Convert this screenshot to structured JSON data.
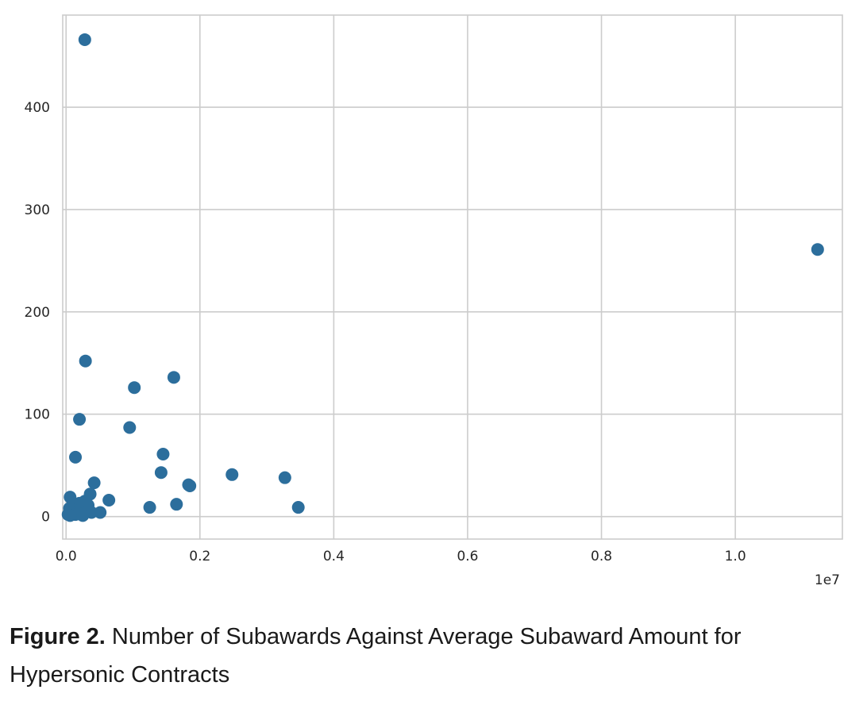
{
  "chart_data": {
    "type": "scatter",
    "title": "",
    "xlabel": "",
    "ylabel": "",
    "x_offset_label": "1e7",
    "xlim": [
      -50000,
      11600000
    ],
    "ylim": [
      -22,
      490
    ],
    "xticks": [
      0,
      2000000,
      4000000,
      6000000,
      8000000,
      10000000
    ],
    "xtick_labels": [
      "0.0",
      "0.2",
      "0.4",
      "0.6",
      "0.8",
      "1.0"
    ],
    "yticks": [
      0,
      100,
      200,
      300,
      400
    ],
    "ytick_labels": [
      "0",
      "100",
      "200",
      "300",
      "400"
    ],
    "grid": true,
    "marker_color": "#2c6e9c",
    "points": [
      {
        "x": 280000,
        "y": 466
      },
      {
        "x": 11230000,
        "y": 261
      },
      {
        "x": 290000,
        "y": 152
      },
      {
        "x": 1610000,
        "y": 136
      },
      {
        "x": 1020000,
        "y": 126
      },
      {
        "x": 200000,
        "y": 95
      },
      {
        "x": 950000,
        "y": 87
      },
      {
        "x": 1450000,
        "y": 61
      },
      {
        "x": 140000,
        "y": 58
      },
      {
        "x": 1420000,
        "y": 43
      },
      {
        "x": 2480000,
        "y": 41
      },
      {
        "x": 3270000,
        "y": 38
      },
      {
        "x": 420000,
        "y": 33
      },
      {
        "x": 1830000,
        "y": 31
      },
      {
        "x": 1850000,
        "y": 30
      },
      {
        "x": 360000,
        "y": 22
      },
      {
        "x": 60000,
        "y": 19
      },
      {
        "x": 640000,
        "y": 16
      },
      {
        "x": 280000,
        "y": 15
      },
      {
        "x": 200000,
        "y": 13
      },
      {
        "x": 1650000,
        "y": 12
      },
      {
        "x": 100000,
        "y": 12
      },
      {
        "x": 330000,
        "y": 11
      },
      {
        "x": 160000,
        "y": 10
      },
      {
        "x": 1250000,
        "y": 9
      },
      {
        "x": 3470000,
        "y": 9
      },
      {
        "x": 50000,
        "y": 8
      },
      {
        "x": 240000,
        "y": 7
      },
      {
        "x": 120000,
        "y": 6
      },
      {
        "x": 310000,
        "y": 5
      },
      {
        "x": 510000,
        "y": 4
      },
      {
        "x": 380000,
        "y": 4
      },
      {
        "x": 80000,
        "y": 4
      },
      {
        "x": 180000,
        "y": 3
      },
      {
        "x": 30000,
        "y": 2
      },
      {
        "x": 140000,
        "y": 2
      },
      {
        "x": 60000,
        "y": 1
      },
      {
        "x": 250000,
        "y": 1
      }
    ]
  },
  "caption": {
    "label": "Figure 2.",
    "text": "Number of Subawards Against Average Subaward Amount for Hypersonic Contracts"
  }
}
